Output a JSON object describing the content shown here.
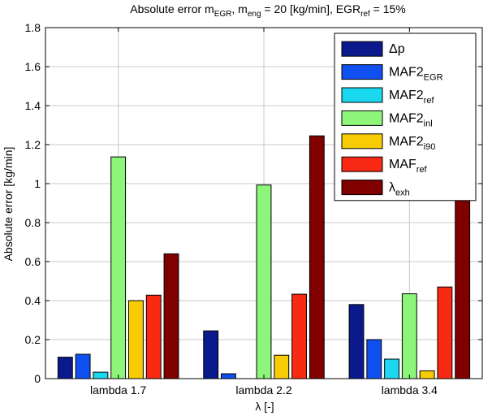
{
  "chart_data": {
    "type": "bar",
    "title_parts": [
      {
        "t": "Absolute error m",
        "s": "n"
      },
      {
        "t": "EGR",
        "s": "sub"
      },
      {
        "t": ", m",
        "s": "n"
      },
      {
        "t": "eng",
        "s": "sub"
      },
      {
        "t": " = 20 [kg/min], EGR",
        "s": "n"
      },
      {
        "t": "ref",
        "s": "sub"
      },
      {
        "t": " = 15%",
        "s": "n"
      }
    ],
    "xlabel": "λ [-]",
    "ylabel": "Absolute error [kg/min]",
    "categories": [
      "lambda 1.7",
      "lambda 2.2",
      "lambda 3.4"
    ],
    "ylim": [
      0,
      1.8
    ],
    "yticks": [
      0,
      0.2,
      0.4,
      0.6,
      0.8,
      1,
      1.2,
      1.4,
      1.6,
      1.8
    ],
    "ytick_labels": [
      "0",
      "0.2",
      "0.4",
      "0.6",
      "0.8",
      "1",
      "1.2",
      "1.4",
      "1.6",
      "1.8"
    ],
    "grid": true,
    "legend_position": "top-right",
    "series": [
      {
        "name": "Δp",
        "base": "Δp",
        "sub": "",
        "color": "#0a1a8c",
        "values": [
          0.11,
          0.245,
          0.38
        ]
      },
      {
        "name": "MAF2EGR",
        "base": "MAF2",
        "sub": "EGR",
        "color": "#1050f0",
        "values": [
          0.125,
          0.025,
          0.2
        ]
      },
      {
        "name": "MAF2ref",
        "base": "MAF2",
        "sub": "ref",
        "color": "#19d8f0",
        "values": [
          0.033,
          0.0,
          0.1
        ]
      },
      {
        "name": "MAF2inl",
        "base": "MAF2",
        "sub": "inl",
        "color": "#8cf57a",
        "values": [
          1.137,
          0.993,
          0.435
        ]
      },
      {
        "name": "MAF2i90",
        "base": "MAF2",
        "sub": "i90",
        "color": "#f8cc05",
        "values": [
          0.4,
          0.12,
          0.04
        ]
      },
      {
        "name": "MAFref",
        "base": "MAF",
        "sub": "ref",
        "color": "#f82a14",
        "values": [
          0.428,
          0.433,
          0.47
        ]
      },
      {
        "name": "λexh",
        "base": "λ",
        "sub": "exh",
        "color": "#800000",
        "values": [
          0.64,
          1.245,
          1.56
        ]
      }
    ]
  }
}
